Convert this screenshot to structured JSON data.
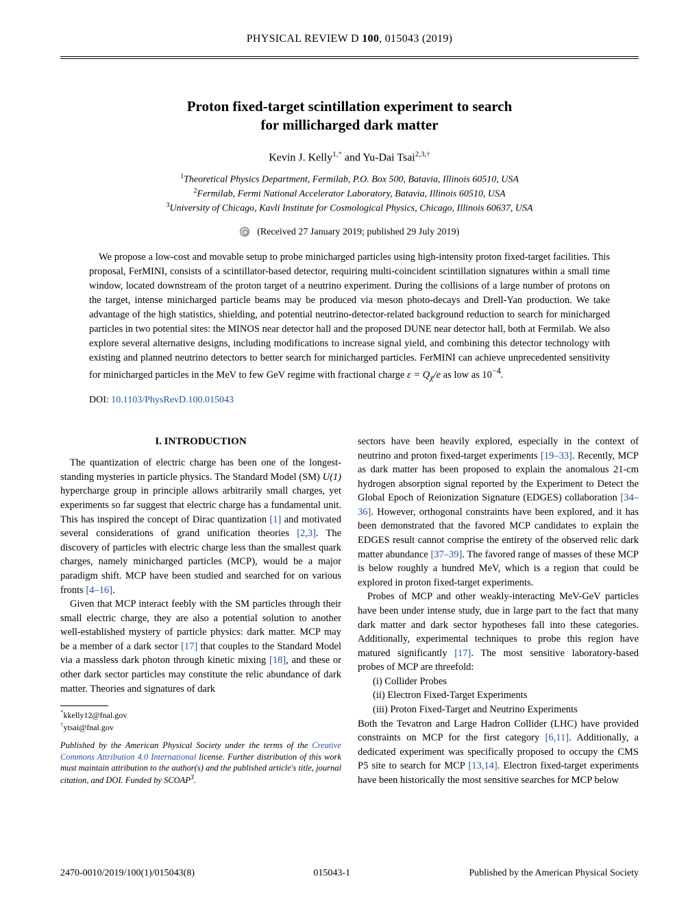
{
  "journal": {
    "name": "PHYSICAL REVIEW D",
    "volume": "100",
    "article": "015043 (2019)"
  },
  "title": {
    "line1": "Proton fixed-target scintillation experiment to search",
    "line2": "for millicharged dark matter"
  },
  "authors": {
    "a1_name": "Kevin J. Kelly",
    "a1_affil": "1,",
    "a1_sym": "*",
    "and": " and ",
    "a2_name": "Yu-Dai Tsai",
    "a2_affil": "2,3,",
    "a2_sym": "†"
  },
  "affiliations": {
    "l1_num": "1",
    "l1_text": "Theoretical Physics Department, Fermilab, P.O. Box 500, Batavia, Illinois 60510, USA",
    "l2_num": "2",
    "l2_text": "Fermilab, Fermi National Accelerator Laboratory, Batavia, Illinois 60510, USA",
    "l3_num": "3",
    "l3_text": "University of Chicago, Kavli Institute for Cosmological Physics, Chicago, Illinois 60637, USA"
  },
  "received": "(Received 27 January 2019; published 29 July 2019)",
  "abstract": {
    "p1a": "We propose a low-cost and movable setup to probe minicharged particles using high-intensity proton fixed-target facilities. This proposal, FerMINI, consists of a scintillator-based detector, requiring multi-coincident scintillation signatures within a small time window, located downstream of the proton target of a neutrino experiment. During the collisions of a large number of protons on the target, intense minicharged particle beams may be produced via meson photo-decays and Drell-Yan production. We take advantage of the high statistics, shielding, and potential neutrino-detector-related background reduction to search for minicharged particles in two potential sites: the MINOS near detector hall and the proposed DUNE near detector hall, both at Fermilab. We also explore several alternative designs, including modifications to increase signal yield, and combining this detector technology with existing and planned neutrino detectors to better search for minicharged particles. FerMINI can achieve unprecedented sensitivity for minicharged particles in the MeV to few GeV regime with fractional charge ",
    "p1b": "ε = Q",
    "p1sub": "χ",
    "p1c": "/e",
    "p1d": " as low as 10",
    "p1exp": "−4",
    "p1e": "."
  },
  "doi": {
    "label": "DOI: ",
    "link": "10.1103/PhysRevD.100.015043"
  },
  "section1": "I. INTRODUCTION",
  "left": {
    "p1a": "The quantization of electric charge has been one of the longest-standing mysteries in particle physics. The Standard Model (SM) ",
    "p1b": "U(1)",
    "p1c": " hypercharge group in principle allows arbitrarily small charges, yet experiments so far suggest that electric charge has a fundamental unit. This has inspired the concept of Dirac quantization ",
    "r1": "[1]",
    "p1d": " and motivated several considerations of grand unification theories ",
    "r2": "[2,3]",
    "p1e": ". The discovery of particles with electric charge less than the smallest quark charges, namely minicharged particles (MCP), would be a major paradigm shift. MCP have been studied and searched for on various fronts ",
    "r3": "[4–16]",
    "p1f": ".",
    "p2a": "Given that MCP interact feebly with the SM particles through their small electric charge, they are also a potential solution to another well-established mystery of particle physics: dark matter. MCP may be a member of a dark sector ",
    "r4": "[17]",
    "p2b": " that couples to the Standard Model via a massless dark photon through kinetic mixing ",
    "r5": "[18]",
    "p2c": ", and these or other dark sector particles may constitute the relic abundance of dark matter. Theories and signatures of dark"
  },
  "footnotes": {
    "f1_sym": "*",
    "f1_text": "kkelly12@fnal.gov",
    "f2_sym": "†",
    "f2_text": "ytsai@fnal.gov"
  },
  "license": {
    "a": "Published by the American Physical Society under the terms of the ",
    "link": "Creative Commons Attribution 4.0 International",
    "b": " license. Further distribution of this work must maintain attribution to the author(s) and the published article's title, journal citation, and DOI. Funded by SCOAP",
    "sup": "3",
    "c": "."
  },
  "right": {
    "p1a": "sectors have been heavily explored, especially in the context of neutrino and proton fixed-target experiments ",
    "r1": "[19–33]",
    "p1b": ". Recently, MCP as dark matter has been proposed to explain the anomalous 21-cm hydrogen absorption signal reported by the Experiment to Detect the Global Epoch of Reionization Signature (EDGES) collaboration ",
    "r2": "[34–36]",
    "p1c": ". However, orthogonal constraints have been explored, and it has been demonstrated that the favored MCP candidates to explain the EDGES result cannot comprise the entirety of the observed relic dark matter abundance ",
    "r3": "[37–39]",
    "p1d": ". The favored range of masses of these MCP is below roughly a hundred MeV, which is a region that could be explored in proton fixed-target experiments.",
    "p2a": "Probes of MCP and other weakly-interacting MeV-GeV particles have been under intense study, due in large part to the fact that many dark matter and dark sector hypotheses fall into these categories. Additionally, experimental techniques to probe this region have matured significantly ",
    "r4": "[17]",
    "p2b": ". The most sensitive laboratory-based probes of MCP are threefold:",
    "li1": "(i) Collider Probes",
    "li2": "(ii) Electron Fixed-Target Experiments",
    "li3": "(iii) Proton Fixed-Target and Neutrino Experiments",
    "p3a": "Both the Tevatron and Large Hadron Collider (LHC) have provided constraints on MCP for the first category ",
    "r5": "[6,11]",
    "p3b": ". Additionally, a dedicated experiment was specifically proposed to occupy the CMS P5 site to search for MCP ",
    "r6": "[13,14]",
    "p3c": ". Electron fixed-target experiments have been historically the most sensitive searches for MCP below"
  },
  "footer": {
    "left": "2470-0010/2019/100(1)/015043(8)",
    "center": "015043-1",
    "right": "Published by the American Physical Society"
  }
}
